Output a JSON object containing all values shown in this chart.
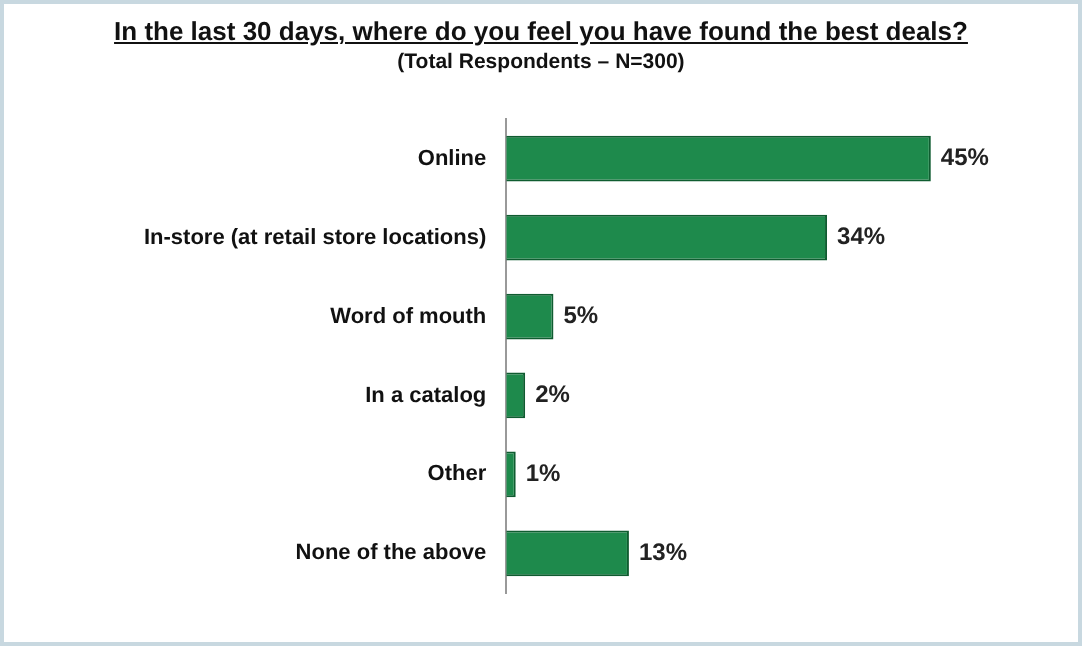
{
  "chart_data": {
    "type": "bar",
    "orientation": "horizontal",
    "title": "In the last 30 days, where do you feel you have found the best deals?",
    "subtitle": "(Total Respondents – N=300)",
    "categories": [
      "Online",
      "In-store (at retail store locations)",
      "Word of mouth",
      "In a catalog",
      "Other",
      "None of the above"
    ],
    "values": [
      45,
      34,
      5,
      2,
      1,
      13
    ],
    "value_labels": [
      "45%",
      "34%",
      "5%",
      "2%",
      "1%",
      "13%"
    ],
    "color": "#1e8a4c",
    "tick_labels": "y",
    "grid": false,
    "legend": false
  }
}
